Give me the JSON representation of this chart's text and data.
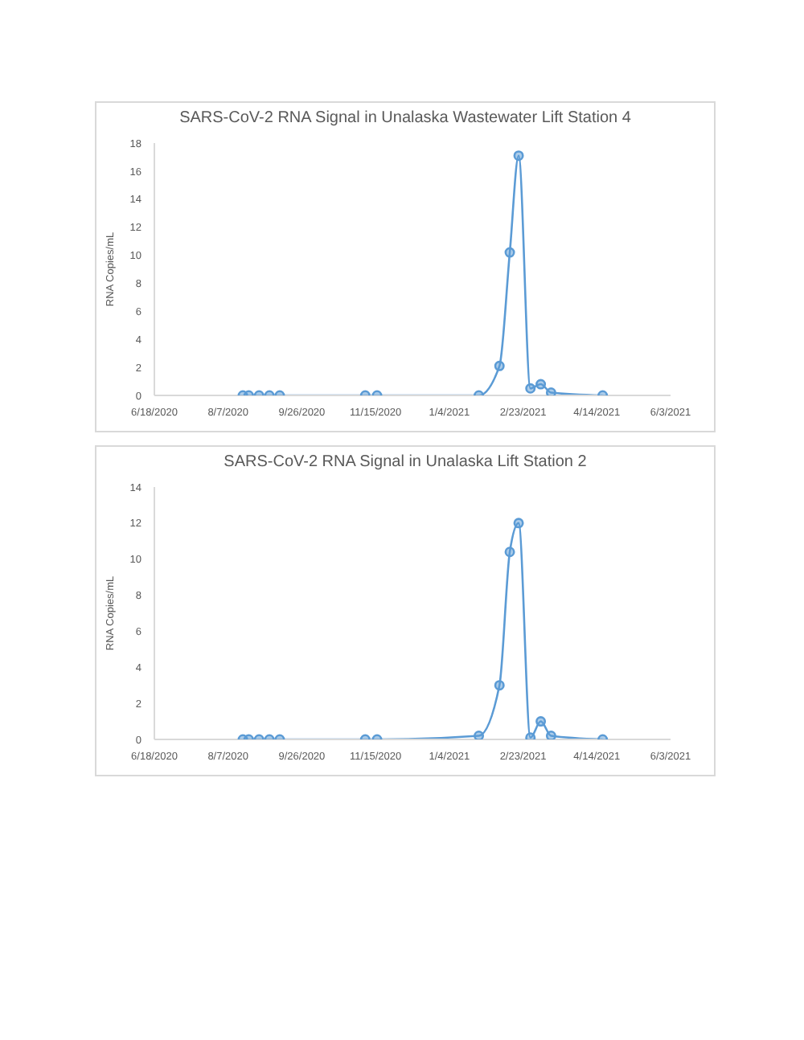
{
  "chart_data": [
    {
      "type": "line",
      "title": "SARS-CoV-2 RNA Signal in Unalaska Wastewater Lift Station 4",
      "ylabel": "RNA Copies/mL",
      "x": [
        "2020-08-17",
        "2020-08-21",
        "2020-08-28",
        "2020-09-04",
        "2020-09-11",
        "2020-11-08",
        "2020-11-16",
        "2021-01-24",
        "2021-02-07",
        "2021-02-14",
        "2021-02-20",
        "2021-02-28",
        "2021-03-07",
        "2021-03-14",
        "2021-04-18"
      ],
      "series": [
        {
          "color": "#5b9bd5",
          "values": [
            0,
            0,
            0,
            0,
            0,
            0,
            0,
            0,
            2.1,
            10.2,
            17.1,
            0.5,
            0.8,
            0.2,
            0
          ]
        }
      ],
      "xlim": [
        "2020-06-18",
        "2021-06-03"
      ],
      "xticks": [
        {
          "value": "2020-06-18",
          "label": "6/18/2020"
        },
        {
          "value": "2020-08-07",
          "label": "8/7/2020"
        },
        {
          "value": "2020-09-26",
          "label": "9/26/2020"
        },
        {
          "value": "2020-11-15",
          "label": "11/15/2020"
        },
        {
          "value": "2021-01-04",
          "label": "1/4/2021"
        },
        {
          "value": "2021-02-23",
          "label": "2/23/2021"
        },
        {
          "value": "2021-04-14",
          "label": "4/14/2021"
        },
        {
          "value": "2021-06-03",
          "label": "6/3/2021"
        }
      ],
      "ylim": [
        0,
        18
      ],
      "yticks": [
        0,
        2,
        4,
        6,
        8,
        10,
        12,
        14,
        16,
        18
      ],
      "marker": "circle",
      "line_style": "solid"
    },
    {
      "type": "line",
      "title": "SARS-CoV-2 RNA Signal in Unalaska Lift Station 2",
      "ylabel": "RNA Copies/mL",
      "x": [
        "2020-08-17",
        "2020-08-21",
        "2020-08-28",
        "2020-09-04",
        "2020-09-11",
        "2020-11-08",
        "2020-11-16",
        "2021-01-24",
        "2021-02-07",
        "2021-02-14",
        "2021-02-20",
        "2021-02-28",
        "2021-03-07",
        "2021-03-14",
        "2021-04-18"
      ],
      "series": [
        {
          "color": "#5b9bd5",
          "values": [
            0,
            0,
            0,
            0,
            0,
            0,
            0,
            0.2,
            3.0,
            10.4,
            12.0,
            0.1,
            1.0,
            0.2,
            0
          ]
        }
      ],
      "xlim": [
        "2020-06-18",
        "2021-06-03"
      ],
      "xticks": [
        {
          "value": "2020-06-18",
          "label": "6/18/2020"
        },
        {
          "value": "2020-08-07",
          "label": "8/7/2020"
        },
        {
          "value": "2020-09-26",
          "label": "9/26/2020"
        },
        {
          "value": "2020-11-15",
          "label": "11/15/2020"
        },
        {
          "value": "2021-01-04",
          "label": "1/4/2021"
        },
        {
          "value": "2021-02-23",
          "label": "2/23/2021"
        },
        {
          "value": "2021-04-14",
          "label": "4/14/2021"
        },
        {
          "value": "2021-06-03",
          "label": "6/3/2021"
        }
      ],
      "ylim": [
        0,
        14
      ],
      "yticks": [
        0,
        2,
        4,
        6,
        8,
        10,
        12,
        14
      ],
      "marker": "circle",
      "line_style": "solid"
    }
  ]
}
